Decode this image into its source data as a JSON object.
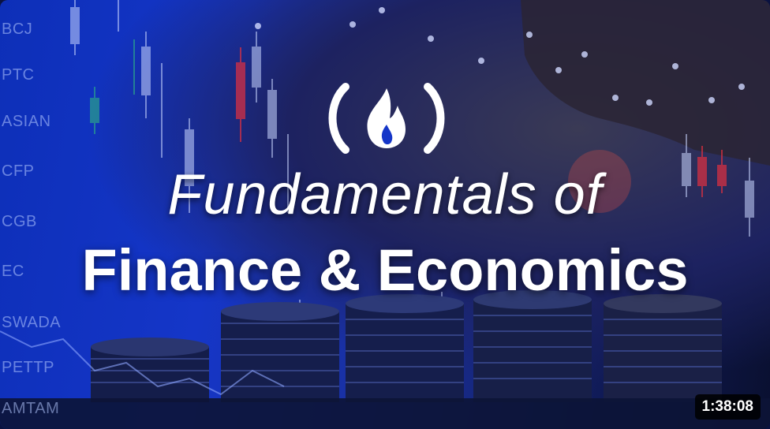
{
  "video": {
    "title_line1": "Fundamentals of",
    "title_line2": "Finance & Economics",
    "duration": "1:38:08",
    "logo_glyph": "(🔥)"
  },
  "background": {
    "tickers": [
      "BCJ",
      "PTC",
      "ASIAN",
      "CFP",
      "CGB",
      "EC",
      "SWADA",
      "PETTP",
      "AMTAM"
    ]
  },
  "icons": {
    "logo": "freecodecamp-flame-icon"
  }
}
